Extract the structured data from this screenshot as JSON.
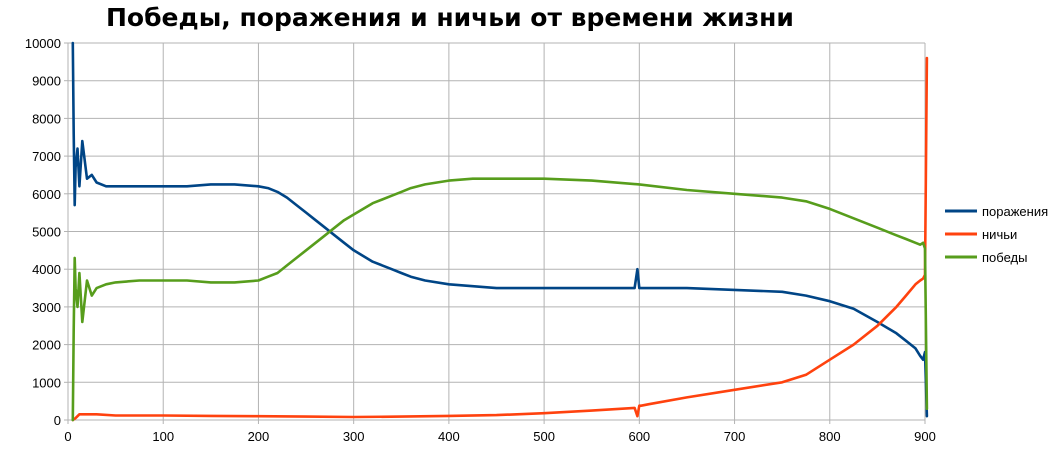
{
  "chart_data": {
    "type": "line",
    "title": "Победы, поражения и ничьи от времени жизни",
    "xlabel": "",
    "ylabel": "",
    "xlim": [
      0,
      900
    ],
    "ylim": [
      0,
      10000
    ],
    "x_ticks": [
      0,
      100,
      200,
      300,
      400,
      500,
      600,
      700,
      800,
      900
    ],
    "y_ticks": [
      0,
      1000,
      2000,
      3000,
      4000,
      5000,
      6000,
      7000,
      8000,
      9000,
      10000
    ],
    "grid": true,
    "legend_position": "right",
    "series": [
      {
        "name": "поражения",
        "color": "#004586",
        "x": [
          5,
          6,
          7,
          8,
          10,
          12,
          15,
          20,
          25,
          30,
          40,
          50,
          75,
          100,
          125,
          150,
          175,
          200,
          210,
          220,
          230,
          240,
          250,
          260,
          270,
          280,
          290,
          300,
          310,
          320,
          330,
          340,
          350,
          360,
          375,
          400,
          425,
          450,
          500,
          550,
          595,
          598,
          600,
          602,
          610,
          650,
          700,
          750,
          775,
          800,
          825,
          850,
          870,
          880,
          890,
          895,
          898,
          900,
          902
        ],
        "y": [
          10000,
          7600,
          5700,
          6700,
          7200,
          6200,
          7400,
          6400,
          6500,
          6300,
          6200,
          6200,
          6200,
          6200,
          6200,
          6250,
          6250,
          6200,
          6150,
          6050,
          5900,
          5700,
          5500,
          5300,
          5100,
          4900,
          4700,
          4500,
          4350,
          4200,
          4100,
          4000,
          3900,
          3800,
          3700,
          3600,
          3550,
          3500,
          3500,
          3500,
          3500,
          4000,
          3500,
          3500,
          3500,
          3500,
          3450,
          3400,
          3300,
          3150,
          2950,
          2600,
          2300,
          2100,
          1900,
          1700,
          1600,
          1800,
          100
        ]
      },
      {
        "name": "ничьи",
        "color": "#ff420e",
        "x": [
          5,
          8,
          12,
          20,
          30,
          50,
          100,
          150,
          200,
          250,
          300,
          350,
          400,
          450,
          500,
          550,
          595,
          598,
          600,
          602,
          610,
          650,
          700,
          750,
          775,
          800,
          825,
          850,
          870,
          880,
          890,
          895,
          898,
          900,
          902
        ],
        "y": [
          0,
          50,
          150,
          150,
          150,
          120,
          120,
          110,
          100,
          90,
          80,
          90,
          110,
          130,
          180,
          250,
          320,
          100,
          380,
          380,
          420,
          600,
          800,
          1000,
          1200,
          1600,
          2000,
          2500,
          3000,
          3300,
          3600,
          3700,
          3750,
          3850,
          9600
        ]
      },
      {
        "name": "победы",
        "color": "#579d1c",
        "x": [
          5,
          6,
          7,
          8,
          10,
          12,
          15,
          20,
          25,
          30,
          40,
          50,
          75,
          100,
          125,
          150,
          175,
          200,
          210,
          220,
          230,
          240,
          250,
          260,
          270,
          280,
          290,
          300,
          310,
          320,
          330,
          340,
          350,
          360,
          375,
          400,
          425,
          450,
          500,
          550,
          600,
          650,
          700,
          750,
          775,
          800,
          825,
          850,
          870,
          880,
          890,
          895,
          898,
          900,
          902
        ],
        "y": [
          0,
          2400,
          4300,
          3500,
          3000,
          3900,
          2600,
          3700,
          3300,
          3500,
          3600,
          3650,
          3700,
          3700,
          3700,
          3650,
          3650,
          3700,
          3800,
          3900,
          4100,
          4300,
          4500,
          4700,
          4900,
          5100,
          5300,
          5450,
          5600,
          5750,
          5850,
          5950,
          6050,
          6150,
          6250,
          6350,
          6400,
          6400,
          6400,
          6350,
          6250,
          6100,
          6000,
          5900,
          5800,
          5600,
          5350,
          5100,
          4900,
          4800,
          4700,
          4650,
          4700,
          4550,
          300
        ]
      }
    ]
  }
}
